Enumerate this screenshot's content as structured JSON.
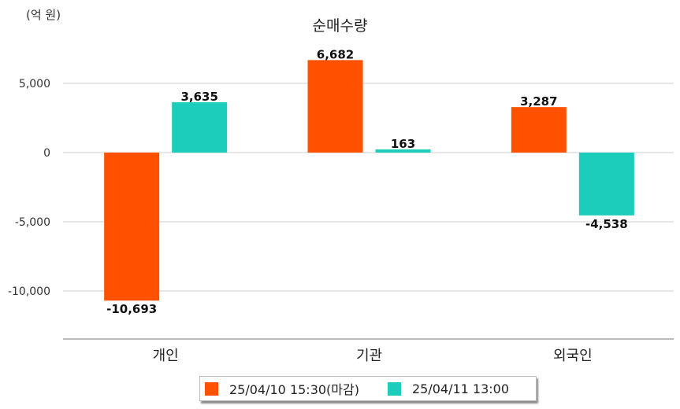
{
  "chart_data": {
    "type": "bar",
    "title": "순매수량",
    "unit_label": "(억 원)",
    "categories": [
      "개인",
      "기관",
      "외국인"
    ],
    "series": [
      {
        "name": "25/04/10 15:30(마감)",
        "color": "#ff5100",
        "values": [
          -10693,
          6682,
          3287
        ],
        "labels": [
          "-10,693",
          "6,682",
          "3,287"
        ]
      },
      {
        "name": "25/04/11 13:00",
        "color": "#1dcdbc",
        "values": [
          3635,
          163,
          -4538
        ],
        "labels": [
          "3,635",
          "163",
          "-4,538"
        ]
      }
    ],
    "ylim": [
      -13400,
      7800
    ],
    "yticks": [
      5000,
      0,
      -5000,
      -10000
    ],
    "ytick_labels": [
      "5,000",
      "0",
      "-5,000",
      "-10,000"
    ],
    "grid": true,
    "legend_position": "bottom"
  }
}
